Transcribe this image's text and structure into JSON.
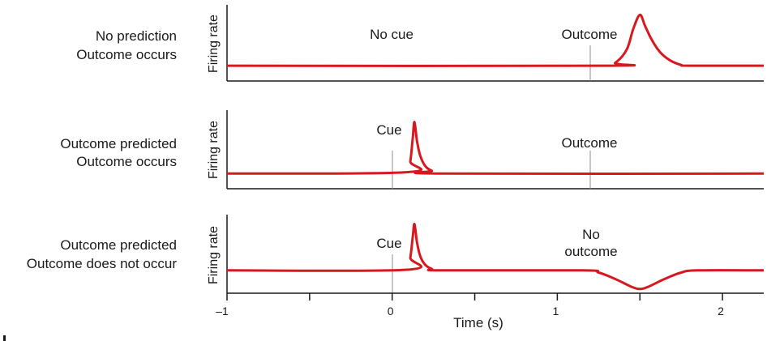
{
  "chart_data": [
    {
      "type": "line",
      "row_label": [
        "No prediction",
        "Outcome occurs"
      ],
      "ylabel": "Firing rate",
      "annotations": [
        {
          "text": [
            "No cue"
          ],
          "x": 0.0
        },
        {
          "text": [
            "Outcome"
          ],
          "x": 1.2
        }
      ],
      "markers": [
        1.2
      ],
      "series": [
        {
          "name": "firing",
          "x": [
            -1.0,
            1.28,
            1.35,
            1.42,
            1.46,
            1.5,
            1.53,
            1.57,
            1.62,
            1.68,
            1.75,
            1.8,
            2.25
          ],
          "y": [
            0.22,
            0.22,
            0.26,
            0.45,
            0.75,
            0.95,
            0.8,
            0.6,
            0.42,
            0.3,
            0.23,
            0.22,
            0.22
          ]
        }
      ]
    },
    {
      "type": "line",
      "row_label": [
        "Outcome predicted",
        "Outcome occurs"
      ],
      "ylabel": "Firing rate",
      "annotations": [
        {
          "text": [
            "Cue"
          ],
          "x": -0.03
        },
        {
          "text": [
            "Outcome"
          ],
          "x": 1.2
        }
      ],
      "markers": [
        0.0,
        1.2
      ],
      "series": [
        {
          "name": "firing",
          "x": [
            -1.0,
            0.09,
            0.11,
            0.125,
            0.135,
            0.15,
            0.17,
            0.2,
            0.24,
            0.3,
            2.25
          ],
          "y": [
            0.22,
            0.24,
            0.4,
            0.75,
            0.97,
            0.7,
            0.48,
            0.33,
            0.26,
            0.22,
            0.22
          ]
        }
      ]
    },
    {
      "type": "line",
      "row_label": [
        "Outcome predicted",
        "Outcome does not occur"
      ],
      "ylabel": "Firing rate",
      "annotations": [
        {
          "text": [
            "Cue"
          ],
          "x": -0.03
        },
        {
          "text": [
            "No",
            "outcome"
          ],
          "x": 1.2
        }
      ],
      "markers": [
        0.0
      ],
      "series": [
        {
          "name": "firing",
          "x": [
            -1.0,
            0.09,
            0.11,
            0.125,
            0.135,
            0.15,
            0.17,
            0.2,
            0.24,
            0.3,
            1.15,
            1.25,
            1.35,
            1.45,
            1.5,
            1.55,
            1.65,
            1.75,
            1.85,
            2.25
          ],
          "y": [
            0.32,
            0.33,
            0.5,
            0.8,
            0.97,
            0.72,
            0.52,
            0.4,
            0.34,
            0.32,
            0.32,
            0.29,
            0.2,
            0.09,
            0.06,
            0.09,
            0.2,
            0.29,
            0.32,
            0.32
          ]
        }
      ]
    }
  ],
  "x_axis": {
    "label": "Time (s)",
    "ticks": [
      -1,
      -0.5,
      0,
      0.5,
      1,
      1.5,
      2
    ],
    "tick_labels": [
      "–1",
      "0",
      "1",
      "2"
    ],
    "labeled_ticks": [
      -1,
      0,
      1,
      2
    ],
    "xlim": [
      -1.0,
      2.25
    ]
  },
  "colors": {
    "trace": "#d7191f",
    "axis": "#1a1a1a",
    "marker": "#8c8c8c"
  }
}
